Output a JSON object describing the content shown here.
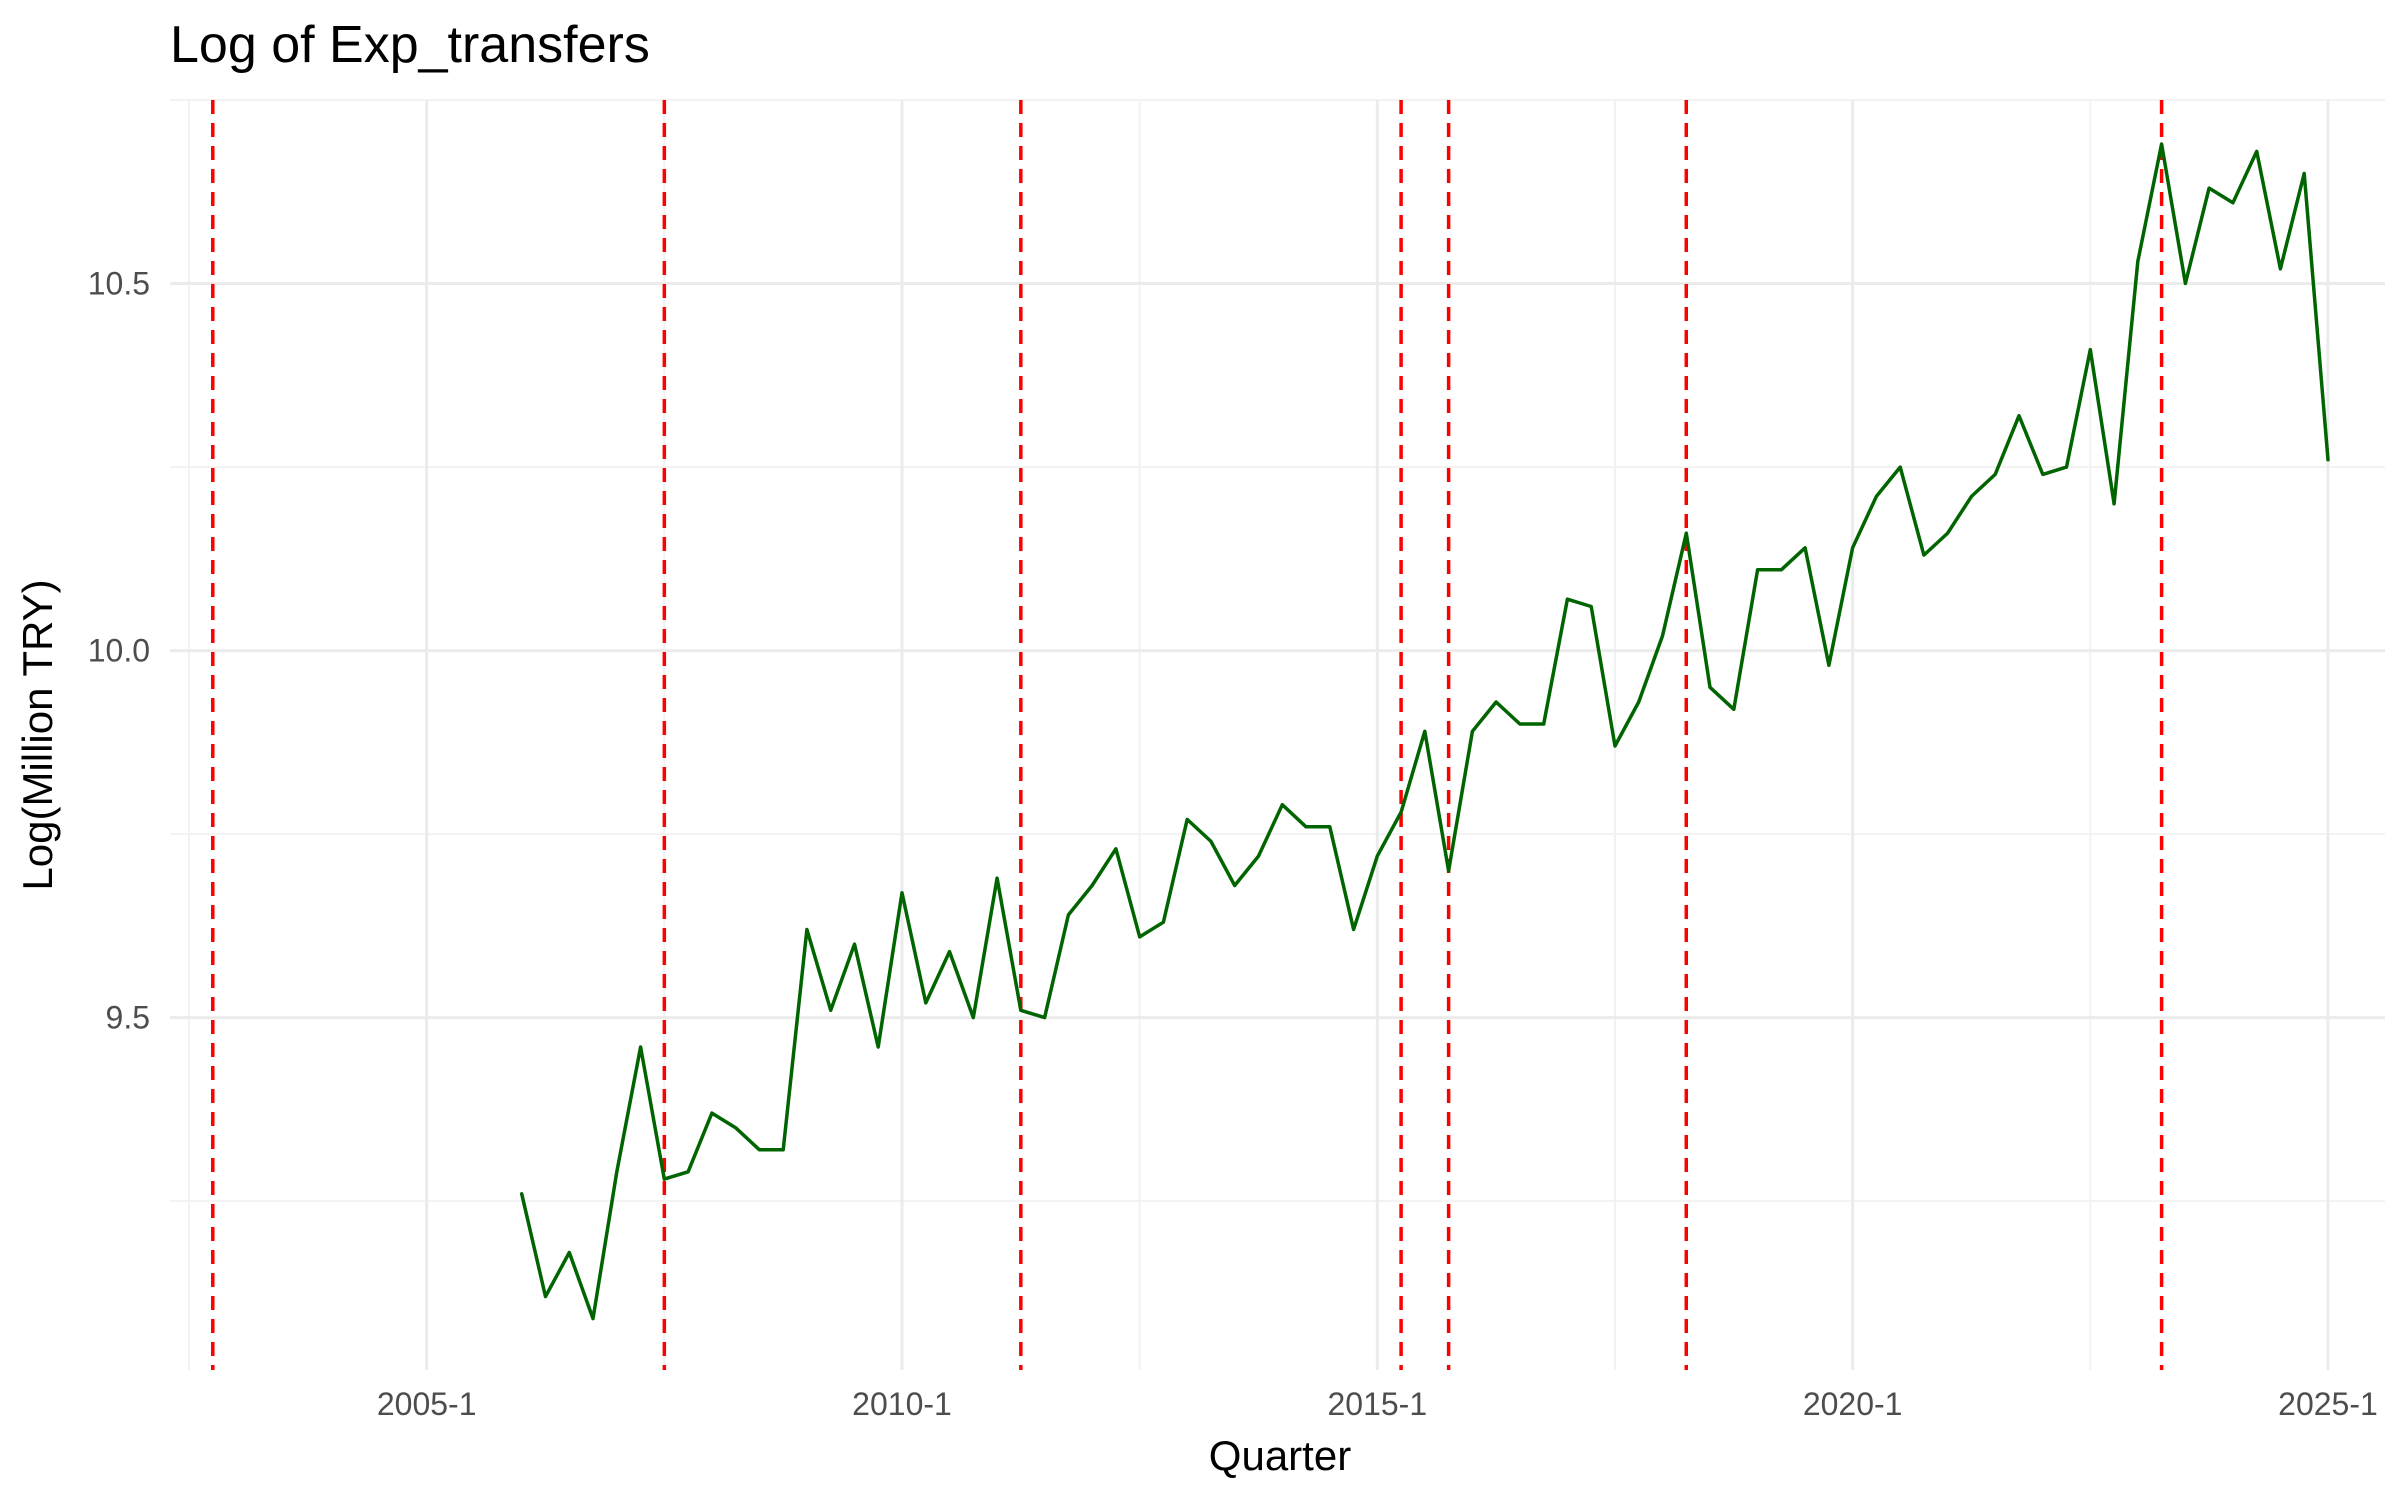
{
  "chart_data": {
    "type": "line",
    "title": "Log of Exp_transfers",
    "xlabel": "Quarter",
    "ylabel": "Log(Million TRY)",
    "x_ticks": [
      {
        "value": 2005.0,
        "label": "2005-1"
      },
      {
        "value": 2010.0,
        "label": "2010-1"
      },
      {
        "value": 2015.0,
        "label": "2015-1"
      },
      {
        "value": 2020.0,
        "label": "2020-1"
      },
      {
        "value": 2025.0,
        "label": "2025-1"
      }
    ],
    "y_ticks": [
      {
        "value": 9.5,
        "label": "9.5"
      },
      {
        "value": 10.0,
        "label": "10.0"
      },
      {
        "value": 10.5,
        "label": "10.5"
      }
    ],
    "xlim": [
      2002.3,
      2025.6
    ],
    "ylim": [
      9.02,
      10.75
    ],
    "grid": true,
    "legend": "none",
    "line_color": "#006400",
    "vline_color": "#FF0000",
    "break_dates": [
      2002.75,
      2007.5,
      2011.25,
      2015.25,
      2015.75,
      2018.25,
      2023.25
    ],
    "series": [
      {
        "x": [
          2006.0,
          2006.25,
          2006.5,
          2006.75,
          2007.0,
          2007.25,
          2007.5,
          2007.75,
          2008.0,
          2008.25,
          2008.5,
          2008.75,
          2009.0,
          2009.25,
          2009.5,
          2009.75,
          2010.0,
          2010.25,
          2010.5,
          2010.75,
          2011.0,
          2011.25,
          2011.5,
          2011.75,
          2012.0,
          2012.25,
          2012.5,
          2012.75,
          2013.0,
          2013.25,
          2013.5,
          2013.75,
          2014.0,
          2014.25,
          2014.5,
          2014.75,
          2015.0,
          2015.25,
          2015.5,
          2015.75,
          2016.0,
          2016.25,
          2016.5,
          2016.75,
          2017.0,
          2017.25,
          2017.5,
          2017.75,
          2018.0,
          2018.25,
          2018.5,
          2018.75,
          2019.0,
          2019.25,
          2019.5,
          2019.75,
          2020.0,
          2020.25,
          2020.5,
          2020.75,
          2021.0,
          2021.25,
          2021.5,
          2021.75,
          2022.0,
          2022.25,
          2022.5,
          2022.75,
          2023.0,
          2023.25,
          2023.5,
          2023.75,
          2024.0,
          2024.25,
          2024.5,
          2024.75,
          2025.0
        ],
        "y": [
          9.26,
          9.12,
          9.18,
          9.09,
          9.29,
          9.46,
          9.28,
          9.29,
          9.37,
          9.35,
          9.32,
          9.32,
          9.62,
          9.51,
          9.6,
          9.46,
          9.67,
          9.52,
          9.59,
          9.5,
          9.69,
          9.51,
          9.5,
          9.64,
          9.68,
          9.73,
          9.61,
          9.63,
          9.77,
          9.74,
          9.68,
          9.72,
          9.79,
          9.76,
          9.76,
          9.62,
          9.72,
          9.78,
          9.89,
          9.7,
          9.89,
          9.93,
          9.9,
          9.9,
          10.07,
          10.06,
          9.87,
          9.93,
          10.02,
          10.16,
          9.95,
          9.92,
          10.11,
          10.11,
          10.14,
          9.98,
          10.14,
          10.21,
          10.25,
          10.13,
          10.16,
          10.21,
          10.24,
          10.32,
          10.24,
          10.25,
          10.41,
          10.2,
          10.53,
          10.69,
          10.5,
          10.63,
          10.61,
          10.68,
          10.52,
          10.65,
          10.26
        ]
      }
    ]
  }
}
